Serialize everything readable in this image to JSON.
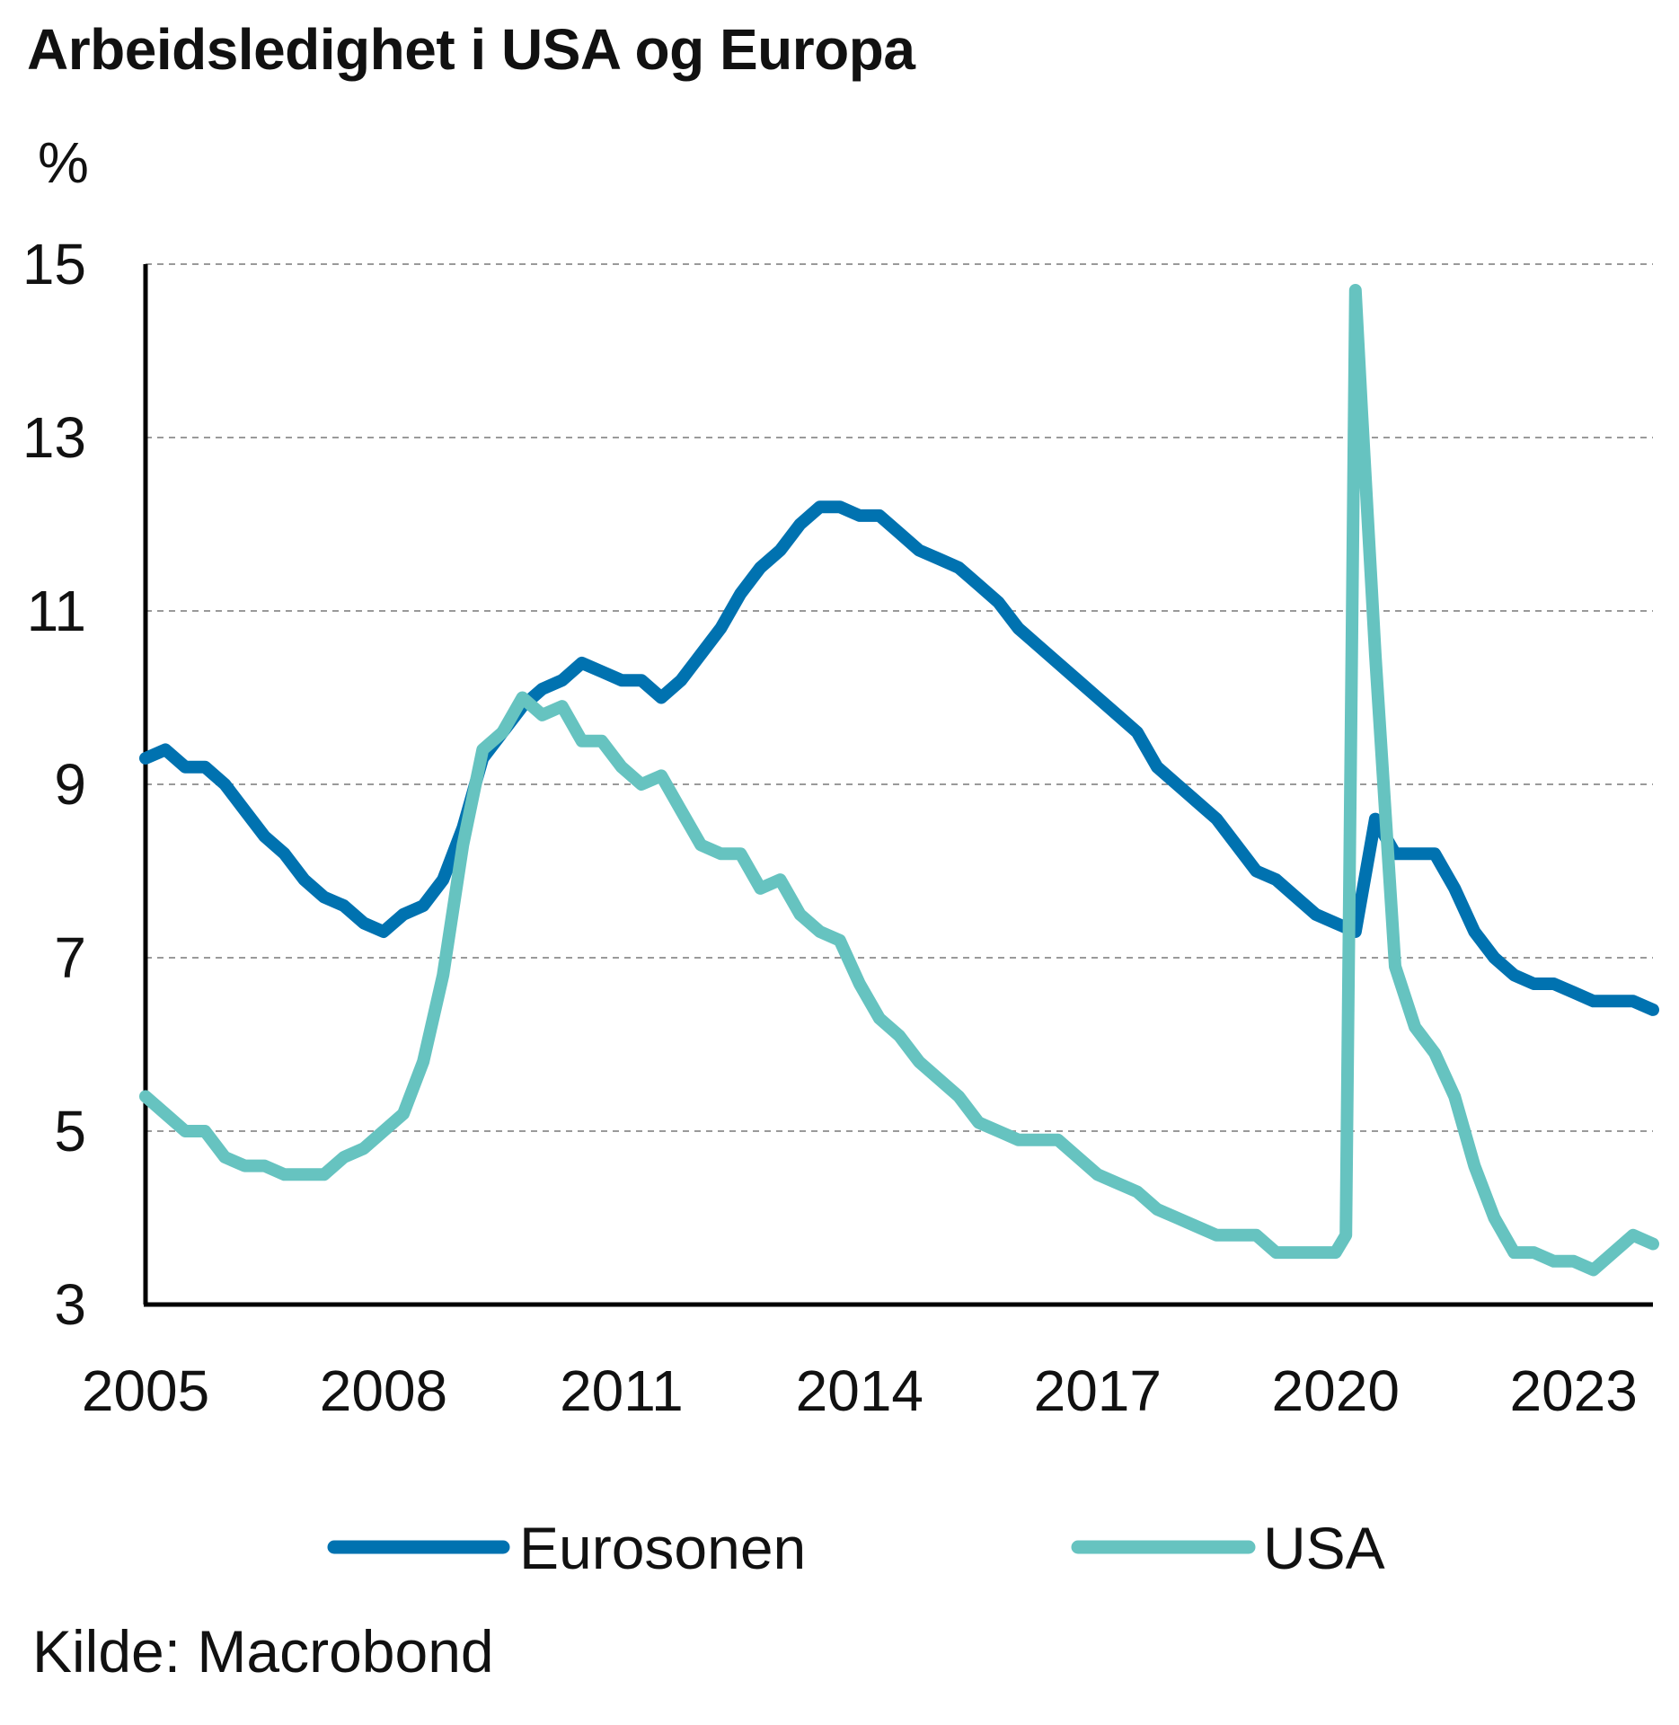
{
  "chart_data": {
    "type": "line",
    "title": "Arbeidsledighet i USA og Europa",
    "ylabel": "%",
    "xlabel": "",
    "xlim": [
      2005.0,
      2024.0
    ],
    "ylim": [
      3,
      15
    ],
    "x_ticks": [
      2005,
      2008,
      2011,
      2014,
      2017,
      2020,
      2023
    ],
    "x_tick_labels": [
      "2005",
      "2008",
      "2011",
      "2014",
      "2017",
      "2020",
      "2023"
    ],
    "y_ticks": [
      3,
      5,
      7,
      9,
      11,
      13,
      15
    ],
    "y_tick_labels": [
      "3",
      "5",
      "7",
      "9",
      "11",
      "13",
      "15"
    ],
    "grid": "horizontal dashed",
    "legend_position": "bottom",
    "series": [
      {
        "name": "Eurosonen",
        "color": "#0072B0",
        "x": [
          2005.0,
          2005.25,
          2005.5,
          2005.75,
          2006.0,
          2006.25,
          2006.5,
          2006.75,
          2007.0,
          2007.25,
          2007.5,
          2007.75,
          2008.0,
          2008.25,
          2008.5,
          2008.75,
          2009.0,
          2009.25,
          2009.5,
          2009.75,
          2010.0,
          2010.25,
          2010.5,
          2010.75,
          2011.0,
          2011.25,
          2011.5,
          2011.75,
          2012.0,
          2012.25,
          2012.5,
          2012.75,
          2013.0,
          2013.25,
          2013.5,
          2013.75,
          2014.0,
          2014.25,
          2014.5,
          2014.75,
          2015.0,
          2015.25,
          2015.5,
          2015.75,
          2016.0,
          2016.25,
          2016.5,
          2016.75,
          2017.0,
          2017.25,
          2017.5,
          2017.75,
          2018.0,
          2018.25,
          2018.5,
          2018.75,
          2019.0,
          2019.25,
          2019.5,
          2019.75,
          2020.0,
          2020.25,
          2020.5,
          2020.75,
          2021.0,
          2021.25,
          2021.5,
          2021.75,
          2022.0,
          2022.25,
          2022.5,
          2022.75,
          2023.0,
          2023.25,
          2023.5,
          2023.75,
          2024.0
        ],
        "values": [
          9.3,
          9.4,
          9.2,
          9.2,
          9.0,
          8.7,
          8.4,
          8.2,
          7.9,
          7.7,
          7.6,
          7.4,
          7.3,
          7.5,
          7.6,
          7.9,
          8.5,
          9.3,
          9.6,
          9.9,
          10.1,
          10.2,
          10.4,
          10.3,
          10.2,
          10.2,
          10.0,
          10.2,
          10.5,
          10.8,
          11.2,
          11.5,
          11.7,
          12.0,
          12.2,
          12.2,
          12.1,
          12.1,
          11.9,
          11.7,
          11.6,
          11.5,
          11.3,
          11.1,
          10.8,
          10.6,
          10.4,
          10.2,
          10.0,
          9.8,
          9.6,
          9.2,
          9.0,
          8.8,
          8.6,
          8.3,
          8.0,
          7.9,
          7.7,
          7.5,
          7.4,
          7.3,
          8.6,
          8.2,
          8.2,
          8.2,
          7.8,
          7.3,
          7.0,
          6.8,
          6.7,
          6.7,
          6.6,
          6.5,
          6.5,
          6.5,
          6.4
        ]
      },
      {
        "name": "USA",
        "color": "#66C3C0",
        "x": [
          2005.0,
          2005.25,
          2005.5,
          2005.75,
          2006.0,
          2006.25,
          2006.5,
          2006.75,
          2007.0,
          2007.25,
          2007.5,
          2007.75,
          2008.0,
          2008.25,
          2008.5,
          2008.75,
          2009.0,
          2009.25,
          2009.5,
          2009.75,
          2010.0,
          2010.25,
          2010.5,
          2010.75,
          2011.0,
          2011.25,
          2011.5,
          2011.75,
          2012.0,
          2012.25,
          2012.5,
          2012.75,
          2013.0,
          2013.25,
          2013.5,
          2013.75,
          2014.0,
          2014.25,
          2014.5,
          2014.75,
          2015.0,
          2015.25,
          2015.5,
          2015.75,
          2016.0,
          2016.25,
          2016.5,
          2016.75,
          2017.0,
          2017.25,
          2017.5,
          2017.75,
          2018.0,
          2018.25,
          2018.5,
          2018.75,
          2019.0,
          2019.25,
          2019.5,
          2019.75,
          2020.0,
          2020.13,
          2020.25,
          2020.33,
          2020.5,
          2020.75,
          2021.0,
          2021.25,
          2021.5,
          2021.75,
          2022.0,
          2022.25,
          2022.5,
          2022.75,
          2023.0,
          2023.25,
          2023.5,
          2023.75,
          2024.0
        ],
        "values": [
          5.4,
          5.2,
          5.0,
          5.0,
          4.7,
          4.6,
          4.6,
          4.5,
          4.5,
          4.5,
          4.7,
          4.8,
          5.0,
          5.2,
          5.8,
          6.8,
          8.3,
          9.4,
          9.6,
          10.0,
          9.8,
          9.9,
          9.5,
          9.5,
          9.2,
          9.0,
          9.1,
          8.7,
          8.3,
          8.2,
          8.2,
          7.8,
          7.9,
          7.5,
          7.3,
          7.2,
          6.7,
          6.3,
          6.1,
          5.8,
          5.6,
          5.4,
          5.1,
          5.0,
          4.9,
          4.9,
          4.9,
          4.7,
          4.5,
          4.4,
          4.3,
          4.1,
          4.0,
          3.9,
          3.8,
          3.8,
          3.8,
          3.6,
          3.6,
          3.6,
          3.6,
          3.8,
          14.7,
          13.3,
          10.5,
          6.9,
          6.2,
          5.9,
          5.4,
          4.6,
          4.0,
          3.6,
          3.6,
          3.5,
          3.5,
          3.4,
          3.6,
          3.8,
          3.7
        ]
      }
    ],
    "source": "Kilde: Macrobond"
  }
}
